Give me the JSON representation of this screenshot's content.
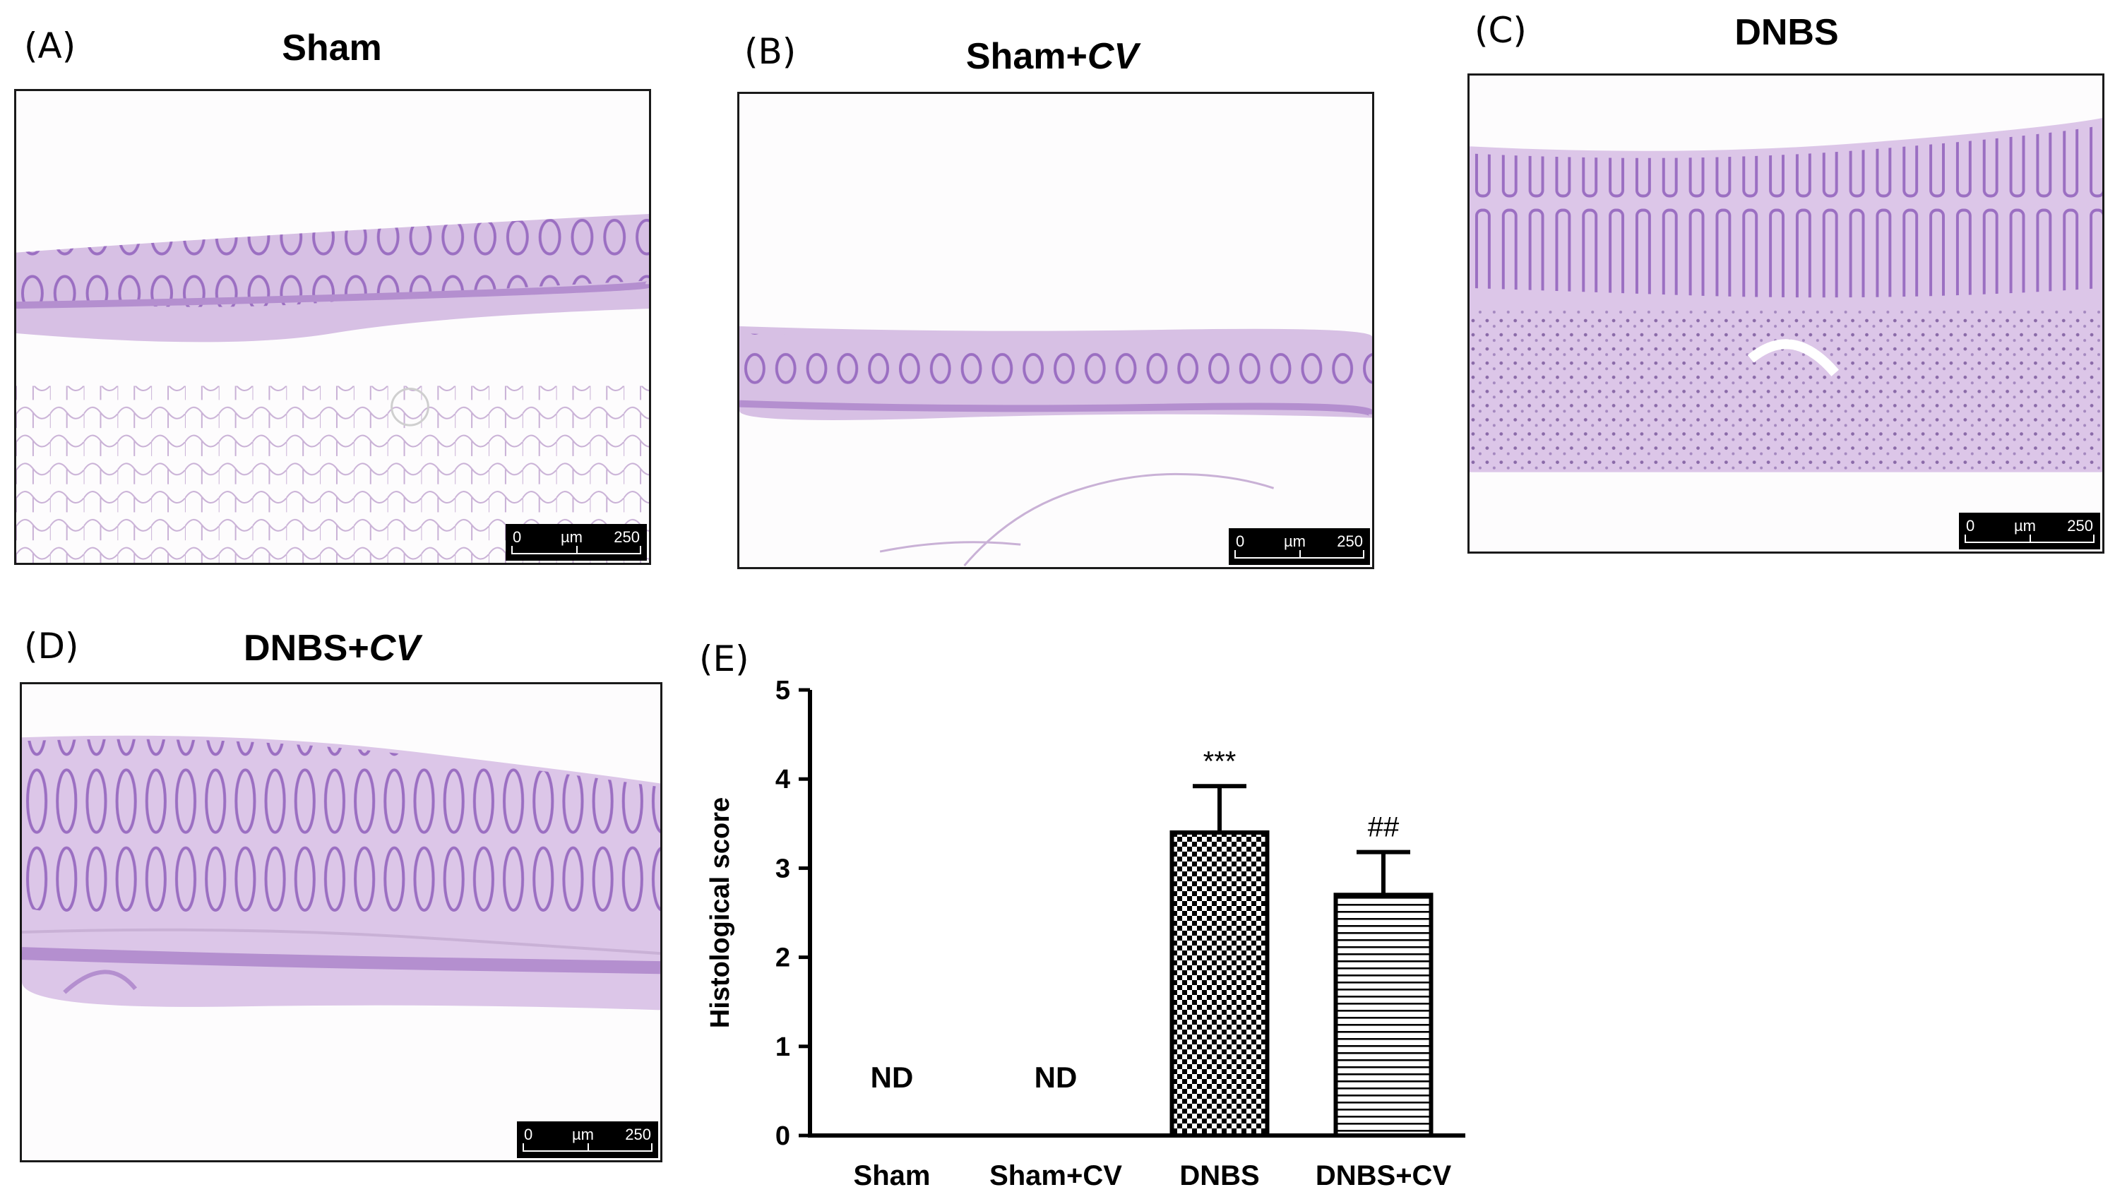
{
  "panels": {
    "a": {
      "letter": "(A)",
      "title": "Sham",
      "title_suffix": ""
    },
    "b": {
      "letter": "(B)",
      "title": "Sham+",
      "title_suffix": "CV"
    },
    "c": {
      "letter": "(C)",
      "title": "DNBS",
      "title_suffix": ""
    },
    "d": {
      "letter": "(D)",
      "title": "DNBS+",
      "title_suffix": "CV"
    },
    "e": {
      "letter": "(E)"
    }
  },
  "scalebar": {
    "start": "0",
    "unit": "µm",
    "end": "250"
  },
  "colors": {
    "stain_light": "#eadcf0",
    "stain_mid": "#c7a6dc",
    "stain_dark": "#9b6fc2",
    "fat": "#b89cc9",
    "bar": "#000000"
  },
  "chart_data": {
    "type": "bar",
    "ylabel": "Histological score",
    "xlabel": "",
    "ylim": [
      0,
      5
    ],
    "yticks": [
      "0",
      "1",
      "2",
      "3",
      "4",
      "5"
    ],
    "categories": [
      "Sham",
      "Sham+CV",
      "DNBS",
      "DNBS+CV"
    ],
    "values": [
      null,
      null,
      3.4,
      2.7
    ],
    "errors": [
      null,
      null,
      0.52,
      0.48
    ],
    "annotations": [
      "ND",
      "ND",
      "***",
      "##"
    ],
    "patterns": [
      "none",
      "none",
      "checkerboard",
      "horizontal-stripes"
    ]
  }
}
